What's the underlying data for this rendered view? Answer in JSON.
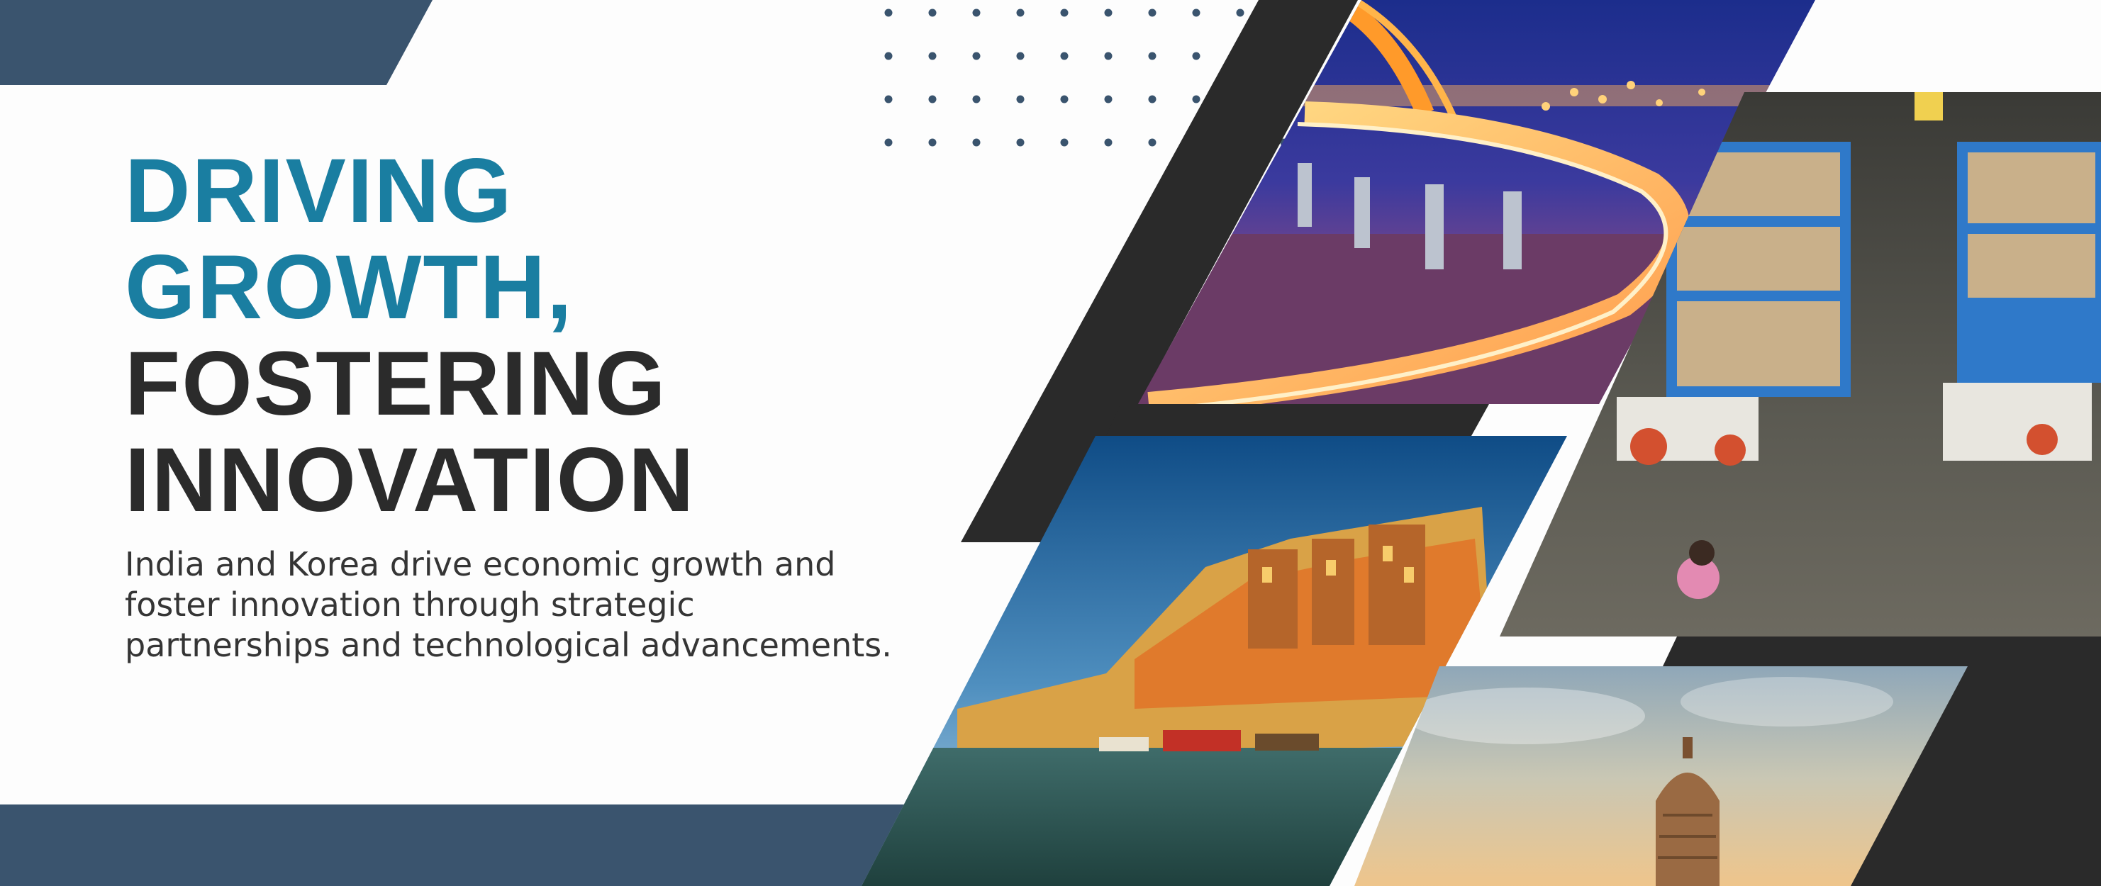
{
  "headline": {
    "line1": "DRIVING",
    "line2": "GROWTH,",
    "line3": "FOSTERING",
    "line4": "INNOVATION"
  },
  "subtext": {
    "line1": "India and Korea drive economic growth and",
    "line2": "foster innovation through strategic",
    "line3": "partnerships and technological advancements."
  },
  "colors": {
    "accent_teal": "#1a7ea1",
    "navy_band": "#3a546e",
    "dark_shape": "#2a2a2a",
    "headline_dark": "#2b2b2b",
    "background": "#fdfdfd"
  },
  "photos": [
    {
      "subject": "illuminated bridge at night with light trails",
      "icon": "bridge-photo"
    },
    {
      "subject": "overhead view of a seafood market with a person walking",
      "icon": "market-photo"
    },
    {
      "subject": "riverside ghats with colorful buildings and boats",
      "icon": "ghats-photo"
    },
    {
      "subject": "temple spire against cloudy sky",
      "icon": "temple-photo"
    }
  ]
}
